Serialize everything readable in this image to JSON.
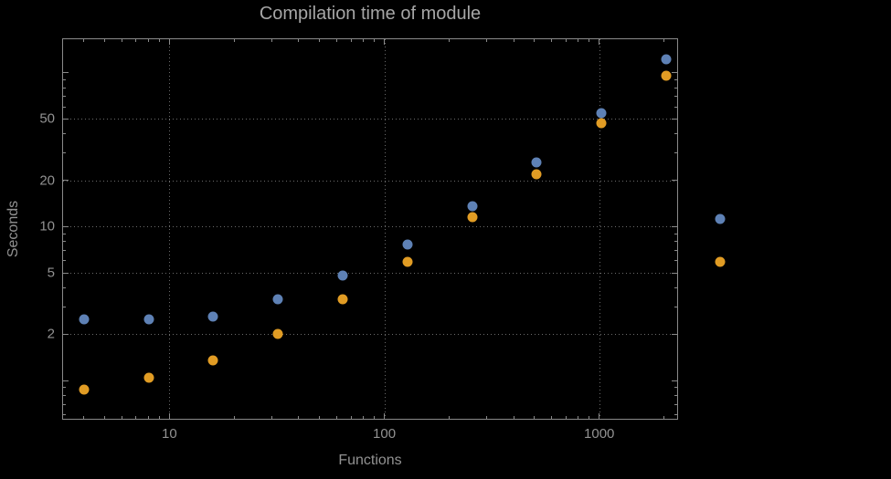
{
  "chart_data": {
    "type": "scatter",
    "title": "Compilation time of module",
    "xlabel": "Functions",
    "ylabel": "Seconds",
    "x_scale": "log",
    "y_scale": "log",
    "xlim": [
      3.2,
      2350
    ],
    "ylim": [
      0.55,
      165
    ],
    "grid": "dotted",
    "x": [
      4,
      8,
      16,
      32,
      64,
      128,
      256,
      512,
      1024,
      2048
    ],
    "series": [
      {
        "name": "blue",
        "color": "#5E81B5",
        "values": [
          2.5,
          2.5,
          2.6,
          3.4,
          4.8,
          7.7,
          13.5,
          26,
          55,
          122
        ]
      },
      {
        "name": "orange",
        "color": "#E19C24",
        "values": [
          0.88,
          1.05,
          1.35,
          2.0,
          3.4,
          5.9,
          11.5,
          22,
          47,
          96
        ]
      }
    ],
    "x_ticks": [
      {
        "value": 10,
        "label": "10"
      },
      {
        "value": 100,
        "label": "100"
      },
      {
        "value": 1000,
        "label": "1000"
      }
    ],
    "y_ticks": [
      {
        "value": 2,
        "label": "2"
      },
      {
        "value": 5,
        "label": "5"
      },
      {
        "value": 10,
        "label": "10"
      },
      {
        "value": 20,
        "label": "20"
      },
      {
        "value": 50,
        "label": "50"
      }
    ],
    "legend_position": "right-of-frame",
    "legend_markers": [
      {
        "color": "#5E81B5"
      },
      {
        "color": "#E19C24"
      }
    ],
    "colors": {
      "background": "#000000",
      "frame": "#8a8a8a",
      "grid": "#6b6b6b",
      "text": "#929292",
      "title": "#a6a6a6"
    }
  }
}
